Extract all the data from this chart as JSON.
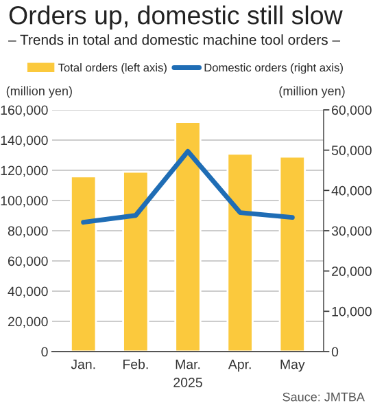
{
  "chart_data": {
    "type": "bar",
    "title": "Orders up, domestic still slow",
    "subtitle": "– Trends in total and domestic machine tool orders –",
    "categories": [
      "Jan.",
      "Feb.",
      "Mar.",
      "Apr.",
      "May"
    ],
    "xlabel": "2025",
    "ylabel": "(million yen)",
    "y2label": "(million yen)",
    "series": [
      {
        "name": "Total orders (left axis)",
        "color": "#fbc93d",
        "values": [
          116000,
          119000,
          152000,
          131000,
          129000
        ]
      },
      {
        "name": "Domestic orders (right axis)",
        "type": "line",
        "axis": "y2",
        "color": "#1f6db5",
        "values": [
          32100,
          33800,
          49700,
          34500,
          33300
        ]
      }
    ],
    "ylim": [
      0,
      160000
    ],
    "yticks": [
      {
        "value": 0,
        "label": "0"
      },
      {
        "value": 20000,
        "label": "20,000"
      },
      {
        "value": 40000,
        "label": "40,000"
      },
      {
        "value": 60000,
        "label": "60,000"
      },
      {
        "value": 80000,
        "label": "80,000"
      },
      {
        "value": 100000,
        "label": "100,000"
      },
      {
        "value": 120000,
        "label": "120,000"
      },
      {
        "value": 140000,
        "label": "140,000"
      },
      {
        "value": 160000,
        "label": "160,000"
      }
    ],
    "y2lim": [
      0,
      60000
    ],
    "y2ticks": [
      {
        "value": 0,
        "label": "0"
      },
      {
        "value": 10000,
        "label": "10,000"
      },
      {
        "value": 20000,
        "label": "20,000"
      },
      {
        "value": 30000,
        "label": "30,000"
      },
      {
        "value": 40000,
        "label": "40,000"
      },
      {
        "value": 50000,
        "label": "50,000"
      },
      {
        "value": 60000,
        "label": "60,000"
      }
    ],
    "grid": "y",
    "legend": "top right",
    "line_style": "solid",
    "marker": "none",
    "annotations": [
      "Sauce: JMTBA"
    ]
  }
}
